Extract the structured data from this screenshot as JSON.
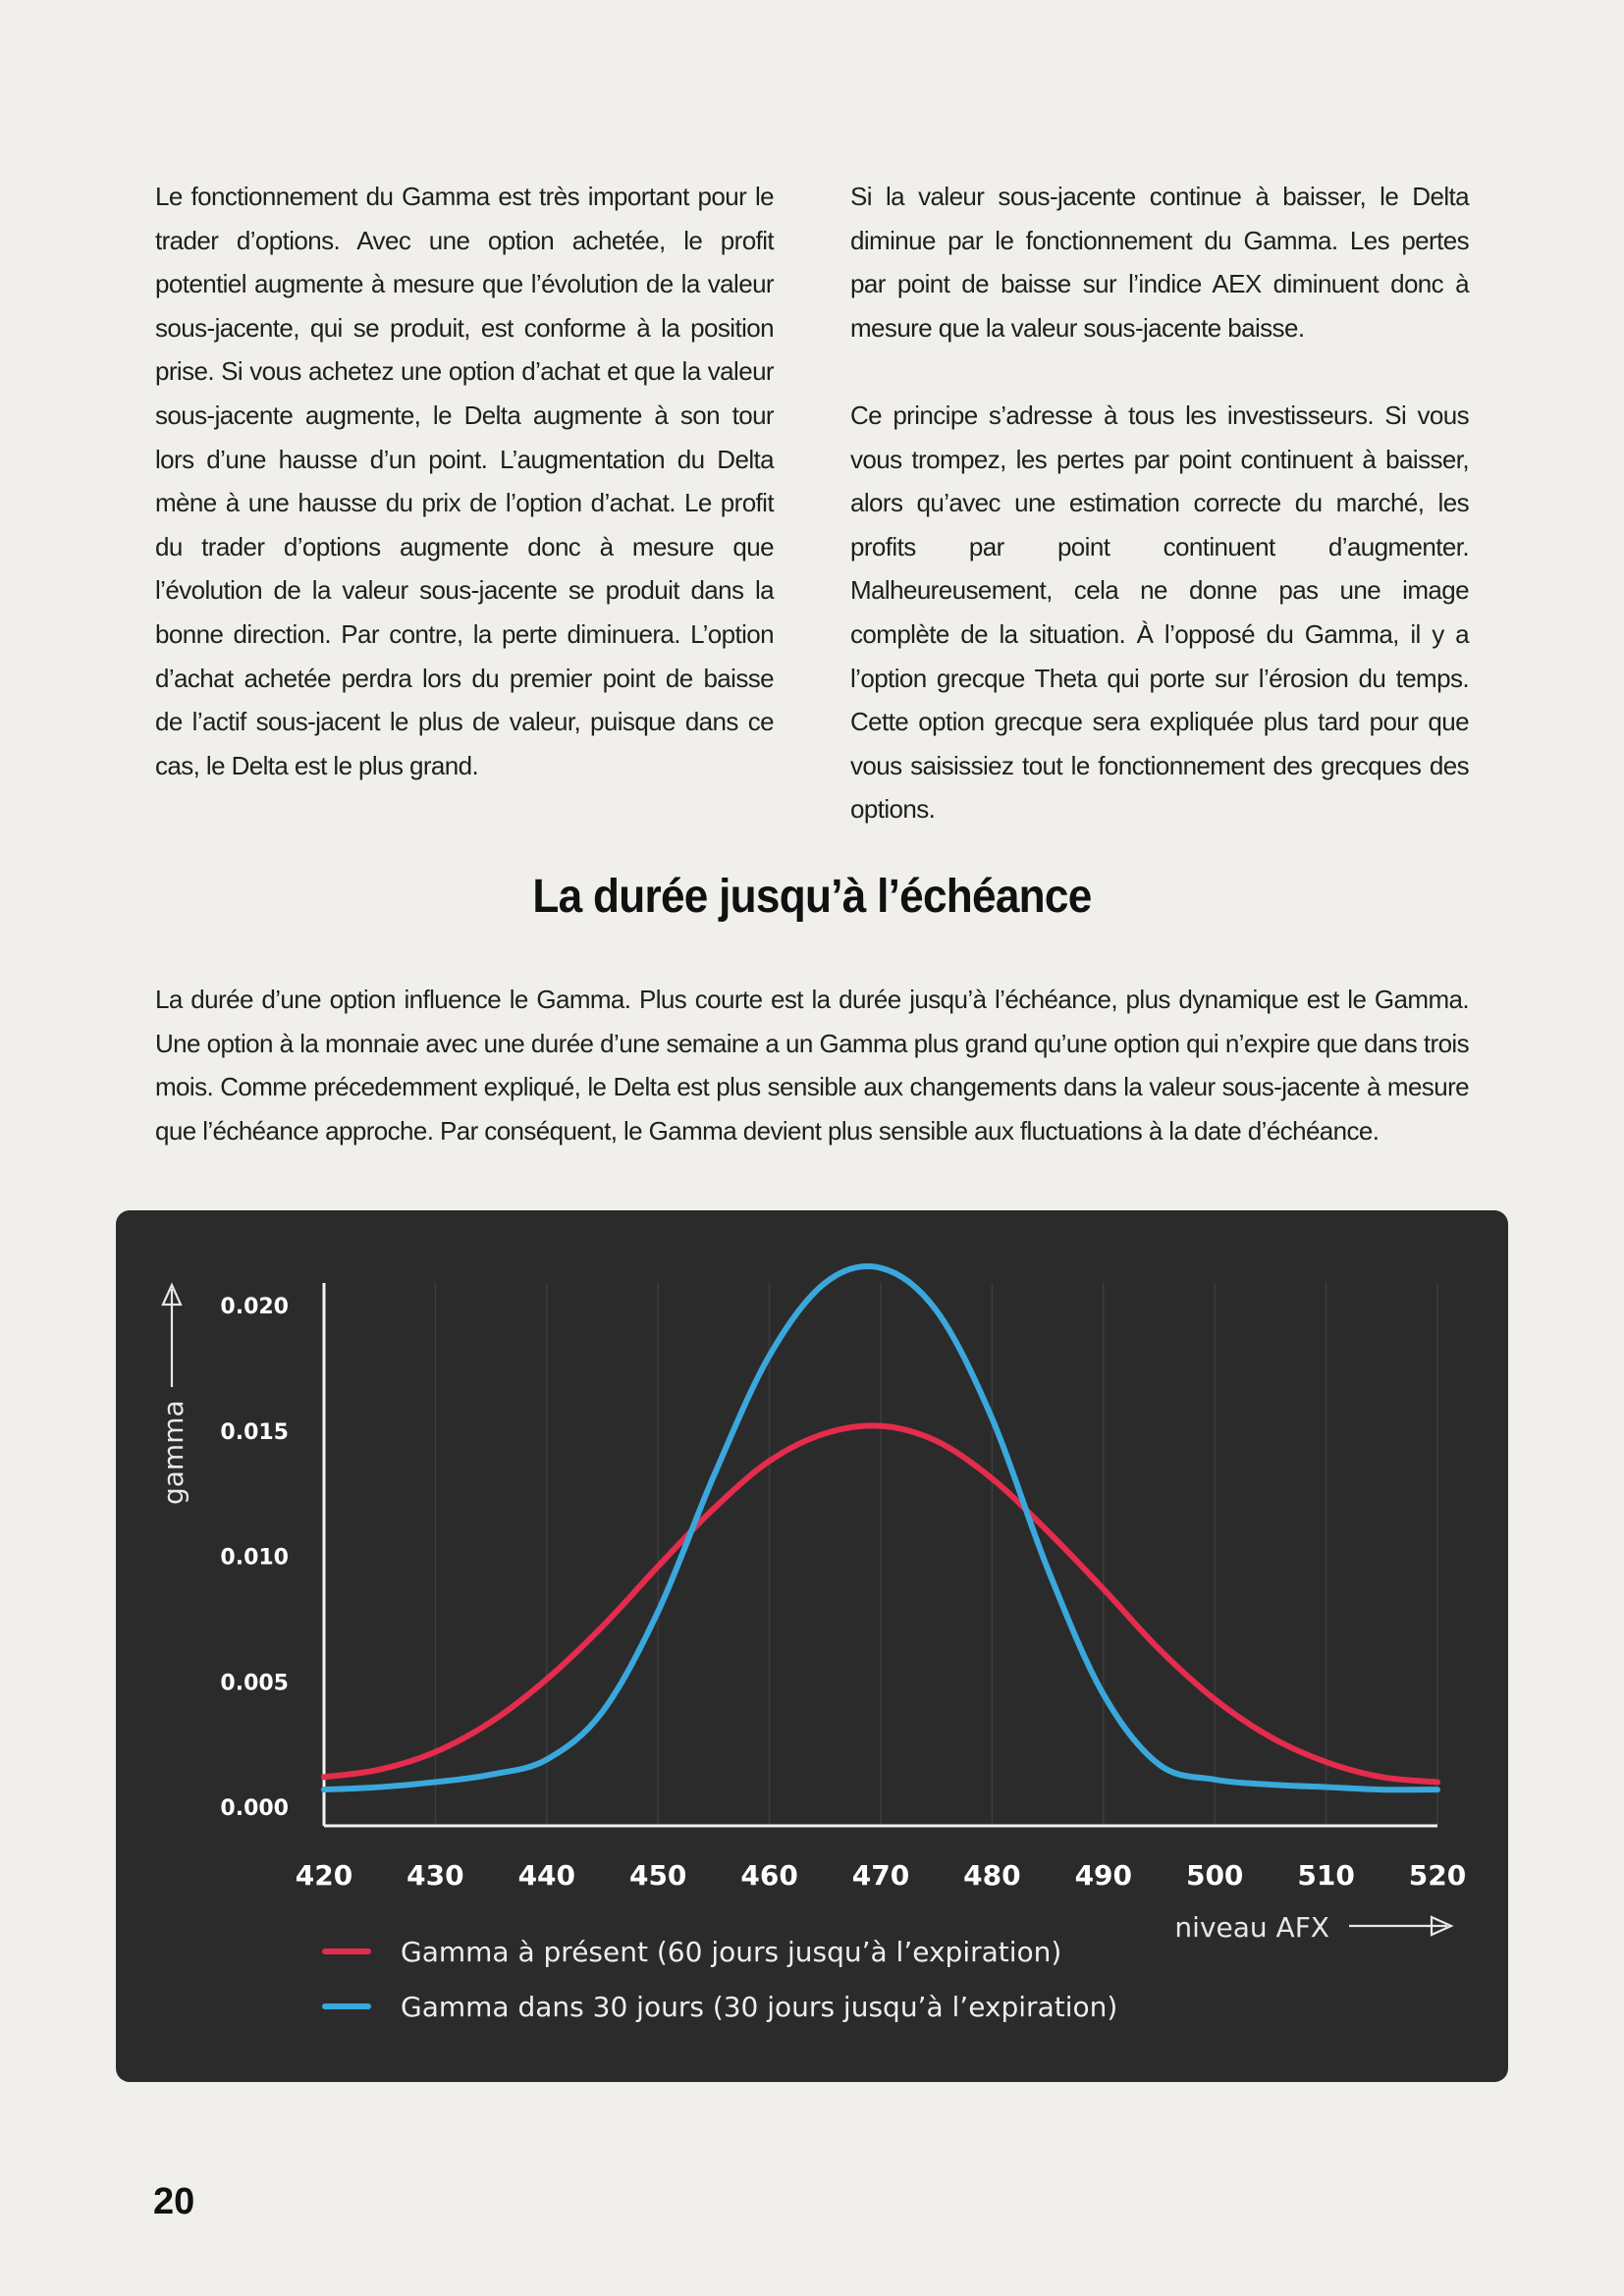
{
  "columns": {
    "left": [
      "Le fonctionnement du Gamma est très important pour le trader d’options. Avec une option achetée, le profit potentiel augmente à mesure que l’évolution de la valeur sous-jacente, qui se produit, est conforme à la position prise. Si vous achetez une option d’achat et que la valeur sous-jacente augmente, le Delta augmente à son tour lors d’une hausse d’un point. L’augmentation du Delta mène à une hausse du prix de l’option d’achat. Le profit du trader d’options augmente donc à mesure que l’évolution de la valeur sous-jacente se produit dans la bonne direction. Par contre, la perte diminuera. L’option d’achat achetée perdra lors du premier point de baisse de l’actif sous-jacent le plus de valeur, puisque dans ce cas, le Delta est le plus grand."
    ],
    "right": [
      "Si la valeur sous-jacente continue à baisser, le Delta diminue par le fonctionnement du Gamma. Les pertes par point de baisse sur l’indice AEX diminuent donc à mesure que la valeur sous-jacente baisse.",
      "Ce principe s’adresse à tous les investisseurs. Si vous vous trompez, les pertes par point continuent à baisser, alors qu’avec une estimation correcte du marché, les profits par point continuent d’augmenter. Malheureusement, cela ne donne pas une image complète de la situation. À l’opposé du Gamma, il y a l’option grecque Theta qui porte sur l’érosion du temps. Cette option grecque sera expliquée plus tard pour que vous saisissiez tout le fonctionnement des grecques des options."
    ]
  },
  "section": {
    "heading": "La durée jusqu’à l’échéance",
    "intro": "La durée d’une option influence le Gamma. Plus courte est la durée jusqu’à l’échéance, plus dynamique est le Gamma. Une option à la monnaie avec une durée d’une semaine a un Gamma plus grand qu’une option qui n’expire que dans trois mois. Comme précedemment expliqué, le Delta est plus sensible aux changements dans la valeur sous-jacente à mesure que l’échéance approche. Par conséquent, le Gamma devient plus sensible aux fluctuations à la date d’échéance."
  },
  "chart_data": {
    "type": "line",
    "title": "",
    "xlabel": "niveau AFX",
    "ylabel": "gamma",
    "xlim": [
      420,
      520
    ],
    "ylim": [
      0,
      0.02
    ],
    "x_ticks": [
      "420",
      "430",
      "440",
      "450",
      "460",
      "470",
      "480",
      "490",
      "500",
      "510",
      "520"
    ],
    "y_ticks": [
      "0.000",
      "0.005",
      "0.010",
      "0.015",
      "0.020"
    ],
    "grid": "vertical",
    "legend_position": "bottom-left",
    "x": [
      420,
      425,
      430,
      435,
      440,
      445,
      450,
      455,
      460,
      465,
      470,
      475,
      480,
      485,
      490,
      495,
      500,
      505,
      510,
      515,
      520
    ],
    "series": [
      {
        "name": "Gamma à présent (60 jours jusqu’à l’expiration)",
        "color": "#e42c4c",
        "values": [
          0.0012,
          0.0015,
          0.0022,
          0.0034,
          0.0051,
          0.0072,
          0.0096,
          0.0119,
          0.0138,
          0.0149,
          0.0152,
          0.0146,
          0.0131,
          0.011,
          0.0087,
          0.0063,
          0.0043,
          0.0028,
          0.0018,
          0.0012,
          0.001
        ]
      },
      {
        "name": "Gamma dans 30 jours (30 jours jusqu’à l’expiration)",
        "color": "#3aa8dc",
        "values": [
          0.0007,
          0.0008,
          0.001,
          0.0013,
          0.0019,
          0.0038,
          0.0078,
          0.0132,
          0.018,
          0.0209,
          0.0215,
          0.0198,
          0.0155,
          0.0095,
          0.0045,
          0.0017,
          0.0011,
          0.0009,
          0.0008,
          0.0007,
          0.0007
        ]
      }
    ]
  },
  "page_number": "20"
}
